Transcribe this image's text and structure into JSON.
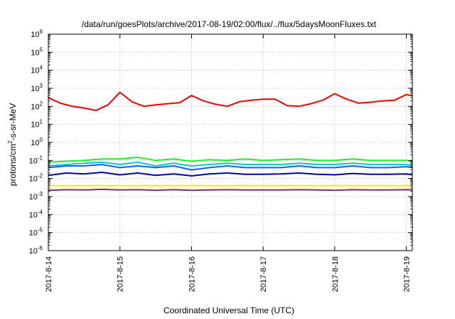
{
  "chart_data": {
    "type": "line",
    "title": "/data/run/goesPlots/archive/2017-08-19/02:00/flux/../flux/5daysMoonFluxes.txt",
    "xlabel": "Coordinated Universal Time (UTC)",
    "ylabel": {
      "base": "protons/cm",
      "sup": "2",
      "rest": "-s-sr-MeV"
    },
    "y_scale": "log",
    "ylim": [
      1e-06,
      1000000.0
    ],
    "y_ticks": [
      {
        "value": -6,
        "label_base": "10",
        "label_exp": "-6"
      },
      {
        "value": -5,
        "label_base": "10",
        "label_exp": "-5"
      },
      {
        "value": -4,
        "label_base": "10",
        "label_exp": "-4"
      },
      {
        "value": -3,
        "label_base": "10",
        "label_exp": "-3"
      },
      {
        "value": -2,
        "label_base": "10",
        "label_exp": "-2"
      },
      {
        "value": -1,
        "label_base": "10",
        "label_exp": "-1"
      },
      {
        "value": 0,
        "label_base": "10",
        "label_exp": "0"
      },
      {
        "value": 1,
        "label_base": "10",
        "label_exp": "1"
      },
      {
        "value": 2,
        "label_base": "10",
        "label_exp": "2"
      },
      {
        "value": 3,
        "label_base": "10",
        "label_exp": "3"
      },
      {
        "value": 4,
        "label_base": "10",
        "label_exp": "4"
      },
      {
        "value": 5,
        "label_base": "10",
        "label_exp": "5"
      },
      {
        "value": 6,
        "label_base": "10",
        "label_exp": "6"
      }
    ],
    "xlim": [
      "2017-08-14T00:00",
      "2017-08-19T02:00"
    ],
    "x_ticks": [
      "2017-8-14",
      "2017-8-15",
      "2017-8-16",
      "2017-8-17",
      "2017-8-18",
      "2017-8-19"
    ],
    "grid": true,
    "series": [
      {
        "color": "#ee0000",
        "x": [
          "2017-08-14T00:00",
          "2017-08-14T04:00",
          "2017-08-14T08:00",
          "2017-08-14T12:00",
          "2017-08-14T16:00",
          "2017-08-14T20:00",
          "2017-08-15T00:00",
          "2017-08-15T04:00",
          "2017-08-15T08:00",
          "2017-08-15T12:00",
          "2017-08-15T16:00",
          "2017-08-15T20:00",
          "2017-08-16T00:00",
          "2017-08-16T04:00",
          "2017-08-16T08:00",
          "2017-08-16T12:00",
          "2017-08-16T16:00",
          "2017-08-16T20:00",
          "2017-08-17T00:00",
          "2017-08-17T04:00",
          "2017-08-17T08:00",
          "2017-08-17T12:00",
          "2017-08-17T16:00",
          "2017-08-17T20:00",
          "2017-08-18T00:00",
          "2017-08-18T04:00",
          "2017-08-18T08:00",
          "2017-08-18T12:00",
          "2017-08-18T16:00",
          "2017-08-18T20:00",
          "2017-08-19T00:00",
          "2017-08-19T02:00"
        ],
        "y": [
          300,
          150,
          100,
          80,
          60,
          120,
          600,
          180,
          100,
          120,
          140,
          160,
          400,
          200,
          130,
          100,
          180,
          220,
          250,
          250,
          110,
          100,
          140,
          220,
          500,
          250,
          150,
          170,
          200,
          220,
          450,
          380
        ]
      },
      {
        "color": "#22ee22",
        "x": [
          "2017-08-14T00:00",
          "2017-08-14T06:00",
          "2017-08-14T12:00",
          "2017-08-14T18:00",
          "2017-08-15T00:00",
          "2017-08-15T06:00",
          "2017-08-15T12:00",
          "2017-08-15T18:00",
          "2017-08-16T00:00",
          "2017-08-16T06:00",
          "2017-08-16T12:00",
          "2017-08-16T18:00",
          "2017-08-17T00:00",
          "2017-08-17T06:00",
          "2017-08-17T12:00",
          "2017-08-17T18:00",
          "2017-08-18T00:00",
          "2017-08-18T06:00",
          "2017-08-18T12:00",
          "2017-08-18T18:00",
          "2017-08-19T00:00",
          "2017-08-19T02:00"
        ],
        "y": [
          0.08,
          0.09,
          0.1,
          0.12,
          0.12,
          0.15,
          0.1,
          0.12,
          0.09,
          0.11,
          0.1,
          0.12,
          0.1,
          0.11,
          0.12,
          0.1,
          0.1,
          0.12,
          0.1,
          0.1,
          0.1,
          0.09
        ]
      },
      {
        "color": "#00cccc",
        "x": [
          "2017-08-14T00:00",
          "2017-08-14T06:00",
          "2017-08-14T12:00",
          "2017-08-14T18:00",
          "2017-08-15T00:00",
          "2017-08-15T06:00",
          "2017-08-15T12:00",
          "2017-08-15T18:00",
          "2017-08-16T00:00",
          "2017-08-16T06:00",
          "2017-08-16T12:00",
          "2017-08-16T18:00",
          "2017-08-17T00:00",
          "2017-08-17T06:00",
          "2017-08-17T12:00",
          "2017-08-17T18:00",
          "2017-08-18T00:00",
          "2017-08-18T06:00",
          "2017-08-18T12:00",
          "2017-08-18T18:00",
          "2017-08-19T00:00",
          "2017-08-19T02:00"
        ],
        "y": [
          0.05,
          0.06,
          0.07,
          0.08,
          0.06,
          0.08,
          0.05,
          0.07,
          0.05,
          0.06,
          0.07,
          0.06,
          0.06,
          0.06,
          0.07,
          0.06,
          0.06,
          0.07,
          0.06,
          0.06,
          0.06,
          0.05
        ]
      },
      {
        "color": "#1e5aff",
        "x": [
          "2017-08-14T00:00",
          "2017-08-14T06:00",
          "2017-08-14T12:00",
          "2017-08-14T18:00",
          "2017-08-15T00:00",
          "2017-08-15T06:00",
          "2017-08-15T12:00",
          "2017-08-15T18:00",
          "2017-08-16T00:00",
          "2017-08-16T06:00",
          "2017-08-16T12:00",
          "2017-08-16T18:00",
          "2017-08-17T00:00",
          "2017-08-17T06:00",
          "2017-08-17T12:00",
          "2017-08-17T18:00",
          "2017-08-18T00:00",
          "2017-08-18T06:00",
          "2017-08-18T12:00",
          "2017-08-18T18:00",
          "2017-08-19T00:00",
          "2017-08-19T02:00"
        ],
        "y": [
          0.04,
          0.05,
          0.05,
          0.06,
          0.04,
          0.05,
          0.04,
          0.05,
          0.03,
          0.04,
          0.05,
          0.04,
          0.04,
          0.04,
          0.05,
          0.04,
          0.04,
          0.05,
          0.04,
          0.04,
          0.045,
          0.04
        ]
      },
      {
        "color": "#0000aa",
        "x": [
          "2017-08-14T00:00",
          "2017-08-14T06:00",
          "2017-08-14T12:00",
          "2017-08-14T18:00",
          "2017-08-15T00:00",
          "2017-08-15T06:00",
          "2017-08-15T12:00",
          "2017-08-15T18:00",
          "2017-08-16T00:00",
          "2017-08-16T06:00",
          "2017-08-16T12:00",
          "2017-08-16T18:00",
          "2017-08-17T00:00",
          "2017-08-17T06:00",
          "2017-08-17T12:00",
          "2017-08-17T18:00",
          "2017-08-18T00:00",
          "2017-08-18T06:00",
          "2017-08-18T12:00",
          "2017-08-18T18:00",
          "2017-08-19T00:00",
          "2017-08-19T02:00"
        ],
        "y": [
          0.015,
          0.02,
          0.018,
          0.022,
          0.016,
          0.02,
          0.015,
          0.018,
          0.014,
          0.018,
          0.02,
          0.017,
          0.017,
          0.018,
          0.02,
          0.017,
          0.016,
          0.019,
          0.017,
          0.017,
          0.018,
          0.016
        ]
      },
      {
        "color": "#f0f000",
        "x": [
          "2017-08-14T00:00",
          "2017-08-15T00:00",
          "2017-08-16T00:00",
          "2017-08-17T00:00",
          "2017-08-18T00:00",
          "2017-08-19T00:00",
          "2017-08-19T02:00"
        ],
        "y": [
          0.004,
          0.004,
          0.004,
          0.004,
          0.004,
          0.004,
          0.004
        ]
      },
      {
        "color": "#8b2a6b",
        "x": [
          "2017-08-14T00:00",
          "2017-08-14T06:00",
          "2017-08-14T12:00",
          "2017-08-14T18:00",
          "2017-08-15T00:00",
          "2017-08-15T06:00",
          "2017-08-15T12:00",
          "2017-08-15T18:00",
          "2017-08-16T00:00",
          "2017-08-16T06:00",
          "2017-08-16T12:00",
          "2017-08-16T18:00",
          "2017-08-17T00:00",
          "2017-08-17T06:00",
          "2017-08-17T12:00",
          "2017-08-17T18:00",
          "2017-08-18T00:00",
          "2017-08-18T06:00",
          "2017-08-18T12:00",
          "2017-08-18T18:00",
          "2017-08-19T00:00",
          "2017-08-19T02:00"
        ],
        "y": [
          0.0022,
          0.0024,
          0.0023,
          0.0025,
          0.0023,
          0.0024,
          0.0022,
          0.0024,
          0.0022,
          0.0023,
          0.0024,
          0.0023,
          0.0023,
          0.0023,
          0.0024,
          0.0023,
          0.0022,
          0.0024,
          0.0023,
          0.0023,
          0.0024,
          0.0023
        ]
      }
    ]
  }
}
